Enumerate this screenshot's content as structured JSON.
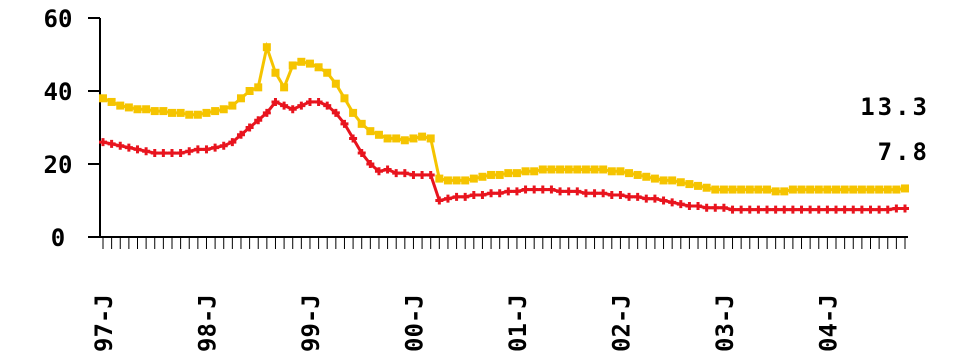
{
  "chart_data": {
    "type": "line",
    "title": "",
    "xlabel": "",
    "ylabel": "",
    "ylim": [
      0,
      60
    ],
    "yticks": [
      0,
      20,
      40,
      60
    ],
    "ytick_labels": [
      "0",
      "20",
      "40",
      "60"
    ],
    "xtick_labels": [
      "97-J",
      "98-J",
      "99-J",
      "00-J",
      "01-J",
      "02-J",
      "03-J",
      "04-J"
    ],
    "x_range_months": 94,
    "grid": false,
    "legend": "none",
    "series": [
      {
        "color": "#f5c400",
        "marker": "square",
        "end_label": "13.3",
        "values": [
          38,
          37,
          36,
          35.5,
          35,
          35,
          34.5,
          34.5,
          34,
          34,
          33.5,
          33.5,
          34,
          34.5,
          35,
          36,
          38,
          40,
          41,
          52,
          45,
          41,
          47,
          48,
          47.5,
          46.5,
          45,
          42,
          38,
          34,
          31,
          29,
          28,
          27,
          27,
          26.5,
          27,
          27.5,
          27,
          16,
          15.5,
          15.5,
          15.5,
          16,
          16.5,
          17,
          17,
          17.5,
          17.5,
          18,
          18,
          18.5,
          18.5,
          18.5,
          18.5,
          18.5,
          18.5,
          18.5,
          18.5,
          18,
          18,
          17.5,
          17,
          16.5,
          16,
          15.5,
          15.5,
          15,
          14.5,
          14,
          13.5,
          13,
          13,
          13,
          13,
          13,
          13,
          13,
          12.5,
          12.5,
          13,
          13,
          13,
          13,
          13,
          13,
          13,
          13,
          13,
          13,
          13,
          13,
          13,
          13.3
        ]
      },
      {
        "color": "#e8141e",
        "marker": "plus",
        "end_label": "7.8",
        "values": [
          26,
          25.5,
          25,
          24.5,
          24,
          23.5,
          23,
          23,
          23,
          23,
          23.5,
          24,
          24,
          24.5,
          25,
          26,
          28,
          30,
          32,
          34,
          37,
          36,
          35,
          36,
          37,
          37,
          36,
          34,
          31,
          27,
          23,
          20,
          18,
          18.5,
          17.5,
          17.5,
          17,
          17,
          17,
          10,
          10.5,
          11,
          11,
          11.5,
          11.5,
          12,
          12,
          12.5,
          12.5,
          13,
          13,
          13,
          13,
          12.5,
          12.5,
          12.5,
          12,
          12,
          12,
          11.5,
          11.5,
          11,
          11,
          10.5,
          10.5,
          10,
          9.5,
          9,
          8.5,
          8.5,
          8,
          8,
          8,
          7.5,
          7.5,
          7.5,
          7.5,
          7.5,
          7.5,
          7.5,
          7.5,
          7.5,
          7.5,
          7.5,
          7.5,
          7.5,
          7.5,
          7.5,
          7.5,
          7.5,
          7.5,
          7.5,
          7.8,
          7.8
        ]
      }
    ]
  }
}
